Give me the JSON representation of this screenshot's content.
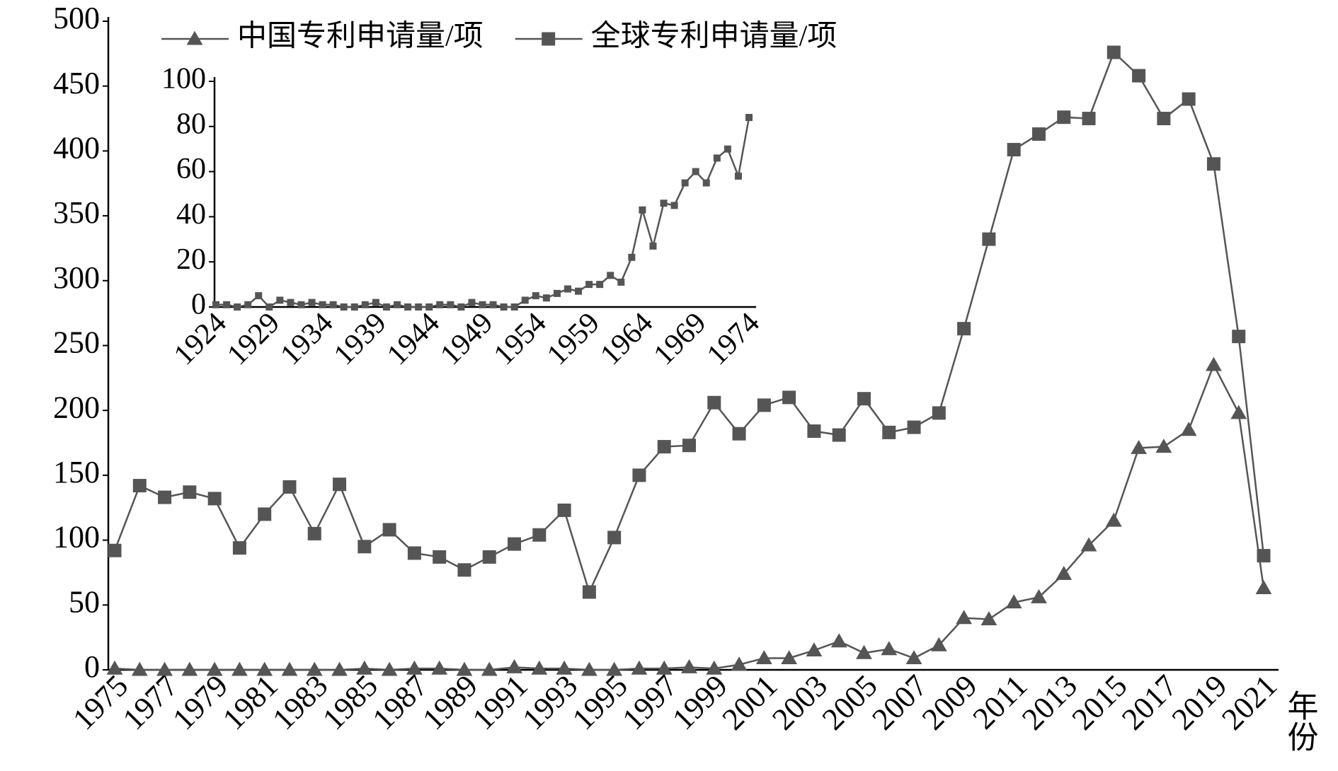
{
  "chart_data": [
    {
      "type": "line",
      "x_label": "年份",
      "categories": [
        "1975",
        null,
        "1977",
        null,
        "1979",
        null,
        "1981",
        null,
        "1983",
        null,
        "1985",
        null,
        "1987",
        null,
        "1989",
        null,
        "1991",
        null,
        "1993",
        null,
        "1995",
        null,
        "1997",
        null,
        "1999",
        null,
        "2001",
        null,
        "2003",
        null,
        "2005",
        null,
        "2007",
        null,
        "2009",
        null,
        "2011",
        null,
        "2013",
        null,
        "2015",
        null,
        "2017",
        null,
        "2019",
        null,
        "2021"
      ],
      "series": [
        {
          "name": "中国专利申请量/项",
          "color": "#555555",
          "marker": "triangle",
          "values": [
            1,
            0,
            0,
            0,
            0,
            0,
            0,
            0,
            0,
            0,
            1,
            0,
            1,
            1,
            0,
            0,
            2,
            1,
            1,
            0,
            0,
            1,
            1,
            2,
            1,
            4,
            9,
            9,
            15,
            22,
            13,
            16,
            9,
            19,
            40,
            39,
            52,
            56,
            74,
            96,
            115,
            171,
            172,
            185,
            235,
            198,
            63
          ]
        },
        {
          "name": "全球专利申请量/项",
          "color": "#555555",
          "marker": "square",
          "values": [
            92,
            142,
            133,
            137,
            132,
            94,
            120,
            141,
            105,
            143,
            95,
            108,
            90,
            87,
            77,
            87,
            97,
            104,
            123,
            60,
            102,
            150,
            172,
            173,
            206,
            182,
            204,
            210,
            184,
            181,
            209,
            183,
            187,
            198,
            263,
            332,
            401,
            413,
            426,
            425,
            476,
            458,
            425,
            440,
            390,
            257,
            88
          ]
        }
      ],
      "ylim": [
        0,
        500
      ],
      "yticks": [
        0,
        50,
        100,
        150,
        200,
        250,
        300,
        350,
        400,
        450,
        500
      ],
      "legend": "upper left"
    },
    {
      "type": "line",
      "categories": [
        "1924",
        null,
        null,
        null,
        null,
        "1929",
        null,
        null,
        null,
        null,
        "1934",
        null,
        null,
        null,
        null,
        "1939",
        null,
        null,
        null,
        null,
        "1944",
        null,
        null,
        null,
        null,
        "1949",
        null,
        null,
        null,
        null,
        "1954",
        null,
        null,
        null,
        null,
        "1959",
        null,
        null,
        null,
        null,
        "1964",
        null,
        null,
        null,
        null,
        "1969",
        null,
        null,
        null,
        null,
        "1974"
      ],
      "series": [
        {
          "color": "#555555",
          "marker": "square",
          "values": [
            1,
            1,
            0,
            1,
            5,
            0,
            3,
            2,
            1,
            2,
            1,
            1,
            0,
            0,
            1,
            2,
            0,
            1,
            0,
            0,
            0,
            1,
            1,
            0,
            2,
            1,
            1,
            0,
            0,
            3,
            5,
            4,
            6,
            8,
            7,
            10,
            10,
            14,
            11,
            22,
            43,
            27,
            46,
            45,
            55,
            60,
            55,
            66,
            70,
            58,
            84
          ]
        }
      ],
      "ylim": [
        0,
        100
      ],
      "yticks": [
        0,
        20,
        40,
        60,
        80,
        100
      ]
    }
  ]
}
